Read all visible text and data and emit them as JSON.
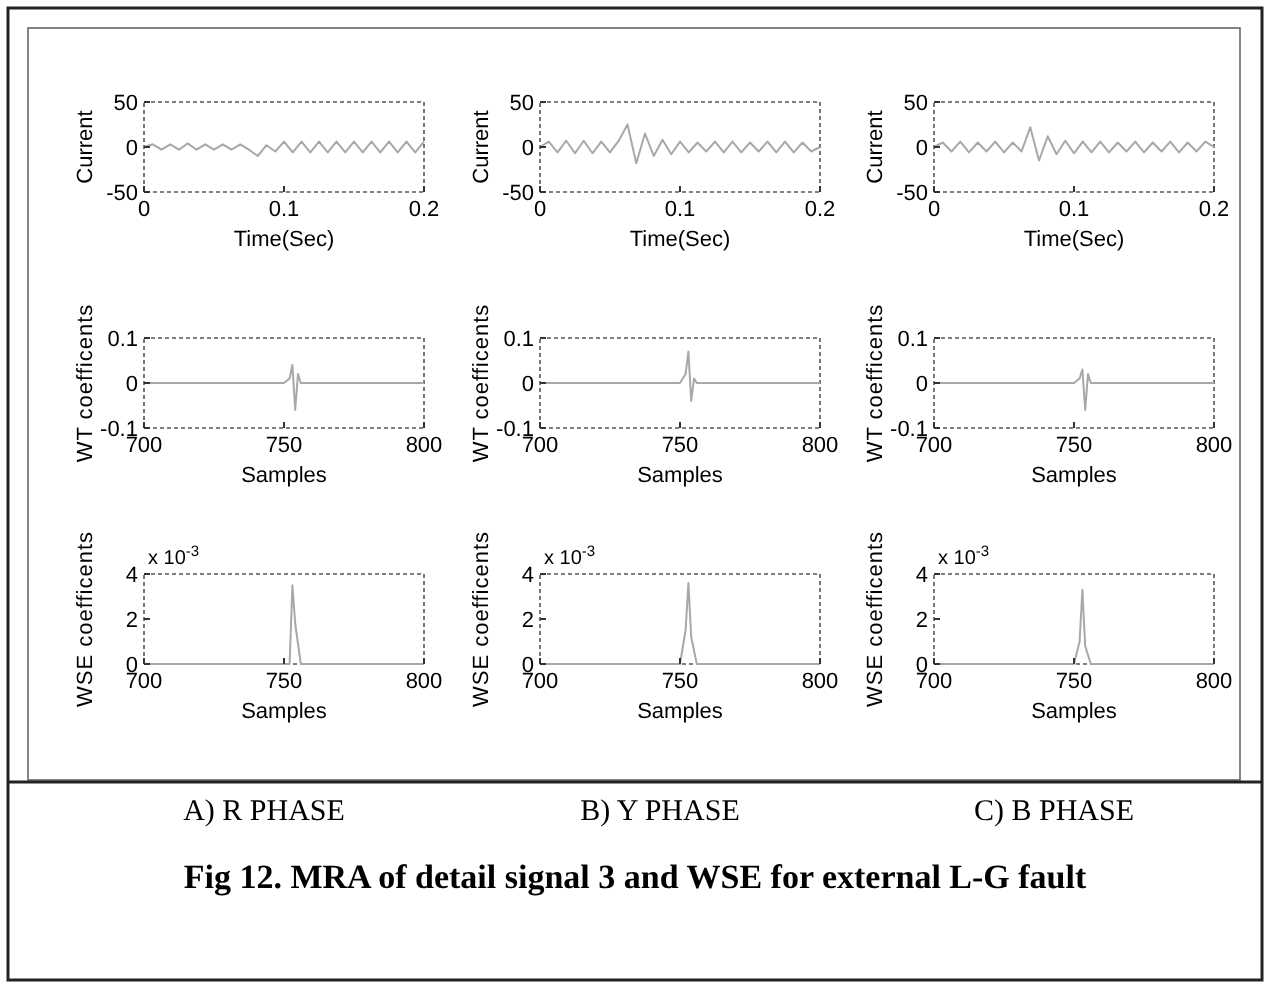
{
  "chart_data": [
    {
      "type": "line",
      "xlabel": "Time(Sec)",
      "ylabel": "Current",
      "xlim": [
        0,
        0.2
      ],
      "ylim": [
        -50,
        50
      ],
      "xticks": [
        0,
        0.1,
        0.2
      ],
      "yticks": [
        -50,
        0,
        50
      ],
      "grid": false,
      "x": [
        0,
        0.00625,
        0.0125,
        0.01875,
        0.025,
        0.03125,
        0.0375,
        0.04375,
        0.05,
        0.05625,
        0.0625,
        0.06875,
        0.075,
        0.08125,
        0.0875,
        0.09375,
        0.1,
        0.10625,
        0.1125,
        0.11875,
        0.125,
        0.13125,
        0.1375,
        0.14375,
        0.15,
        0.15625,
        0.1625,
        0.16875,
        0.175,
        0.18125,
        0.1875,
        0.19375,
        0.2
      ],
      "series": [
        {
          "color": "#a8a8a8",
          "values": [
            0,
            3,
            -3,
            3,
            -3,
            4,
            -3,
            3,
            -3,
            3,
            -3,
            3,
            -3,
            -10,
            2,
            -5,
            6,
            -6,
            6,
            -6,
            6,
            -6,
            6,
            -6,
            6,
            -6,
            6,
            -6,
            6,
            -6,
            6,
            -6,
            6
          ]
        }
      ]
    },
    {
      "type": "line",
      "xlabel": "Time(Sec)",
      "ylabel": "Current",
      "xlim": [
        0,
        0.2
      ],
      "ylim": [
        -50,
        50
      ],
      "xticks": [
        0,
        0.1,
        0.2
      ],
      "yticks": [
        -50,
        0,
        50
      ],
      "grid": false,
      "x": [
        0,
        0.00625,
        0.0125,
        0.01875,
        0.025,
        0.03125,
        0.0375,
        0.04375,
        0.05,
        0.05625,
        0.0625,
        0.06875,
        0.075,
        0.08125,
        0.0875,
        0.09375,
        0.1,
        0.10625,
        0.1125,
        0.11875,
        0.125,
        0.13125,
        0.1375,
        0.14375,
        0.15,
        0.15625,
        0.1625,
        0.16875,
        0.175,
        0.18125,
        0.1875,
        0.19375,
        0.2
      ],
      "series": [
        {
          "color": "#a8a8a8",
          "values": [
            0,
            6,
            -6,
            7,
            -7,
            7,
            -7,
            6,
            -6,
            7,
            25,
            -18,
            15,
            -10,
            8,
            -8,
            6,
            -6,
            5,
            -5,
            6,
            -6,
            6,
            -6,
            5,
            -5,
            6,
            -6,
            6,
            -6,
            5,
            -5,
            0
          ]
        }
      ]
    },
    {
      "type": "line",
      "xlabel": "Time(Sec)",
      "ylabel": "Current",
      "xlim": [
        0,
        0.2
      ],
      "ylim": [
        -50,
        50
      ],
      "xticks": [
        0,
        0.1,
        0.2
      ],
      "yticks": [
        -50,
        0,
        50
      ],
      "grid": false,
      "x": [
        0,
        0.00625,
        0.0125,
        0.01875,
        0.025,
        0.03125,
        0.0375,
        0.04375,
        0.05,
        0.05625,
        0.0625,
        0.06875,
        0.075,
        0.08125,
        0.0875,
        0.09375,
        0.1,
        0.10625,
        0.1125,
        0.11875,
        0.125,
        0.13125,
        0.1375,
        0.14375,
        0.15,
        0.15625,
        0.1625,
        0.16875,
        0.175,
        0.18125,
        0.1875,
        0.19375,
        0.2
      ],
      "series": [
        {
          "color": "#a8a8a8",
          "values": [
            0,
            5,
            -5,
            6,
            -6,
            5,
            -5,
            6,
            -6,
            5,
            -5,
            22,
            -15,
            12,
            -8,
            7,
            -7,
            6,
            -6,
            6,
            -6,
            5,
            -5,
            6,
            -6,
            5,
            -5,
            6,
            -6,
            5,
            -5,
            6,
            0
          ]
        }
      ]
    },
    {
      "type": "line",
      "xlabel": "Samples",
      "ylabel": "WT coefficents",
      "xlim": [
        700,
        800
      ],
      "ylim": [
        -0.1,
        0.1
      ],
      "xticks": [
        700,
        750,
        800
      ],
      "yticks": [
        -0.1,
        0,
        0.1
      ],
      "grid": false,
      "x": [
        700,
        740,
        750,
        752,
        753,
        754,
        755,
        756,
        760,
        800
      ],
      "series": [
        {
          "color": "#a8a8a8",
          "values": [
            0,
            0,
            0,
            0.01,
            0.04,
            -0.06,
            0.02,
            0,
            0,
            0
          ]
        }
      ]
    },
    {
      "type": "line",
      "xlabel": "Samples",
      "ylabel": "WT coefficents",
      "xlim": [
        700,
        800
      ],
      "ylim": [
        -0.1,
        0.1
      ],
      "xticks": [
        700,
        750,
        800
      ],
      "yticks": [
        -0.1,
        0,
        0.1
      ],
      "grid": false,
      "x": [
        700,
        740,
        750,
        752,
        753,
        754,
        755,
        756,
        760,
        800
      ],
      "series": [
        {
          "color": "#a8a8a8",
          "values": [
            0,
            0,
            0,
            0.02,
            0.07,
            -0.04,
            0.01,
            0,
            0,
            0
          ]
        }
      ]
    },
    {
      "type": "line",
      "xlabel": "Samples",
      "ylabel": "WT coefficents",
      "xlim": [
        700,
        800
      ],
      "ylim": [
        -0.1,
        0.1
      ],
      "xticks": [
        700,
        750,
        800
      ],
      "yticks": [
        -0.1,
        0,
        0.1
      ],
      "grid": false,
      "x": [
        700,
        740,
        750,
        752,
        753,
        754,
        755,
        756,
        760,
        800
      ],
      "series": [
        {
          "color": "#a8a8a8",
          "values": [
            0,
            0,
            0,
            0.01,
            0.03,
            -0.06,
            0.02,
            0,
            0,
            0
          ]
        }
      ]
    },
    {
      "type": "line",
      "xlabel": "Samples",
      "ylabel": "WSE coefficents",
      "xlim": [
        700,
        800
      ],
      "ylim": [
        0,
        4
      ],
      "xticks": [
        700,
        750,
        800
      ],
      "yticks": [
        0,
        2,
        4
      ],
      "grid": false,
      "x": [
        700,
        750,
        752,
        753,
        754,
        756,
        800
      ],
      "series": [
        {
          "color": "#a8a8a8",
          "values": [
            0,
            0,
            0,
            3.5,
            1.8,
            0,
            0
          ]
        }
      ],
      "annotations": [
        "x 10$^{-3}$",
        "A) R PHASE"
      ]
    },
    {
      "type": "line",
      "xlabel": "Samples",
      "ylabel": "WSE coefficents",
      "xlim": [
        700,
        800
      ],
      "ylim": [
        0,
        4
      ],
      "xticks": [
        700,
        750,
        800
      ],
      "yticks": [
        0,
        2,
        4
      ],
      "grid": false,
      "x": [
        700,
        750,
        752,
        753,
        754,
        756,
        800
      ],
      "series": [
        {
          "color": "#a8a8a8",
          "values": [
            0,
            0,
            1.5,
            3.6,
            1.2,
            0,
            0
          ]
        }
      ],
      "annotations": [
        "x 10$^{-3}$",
        "B) Y PHASE",
        "Fig 12. MRA of detail signal 3 and WSE for external L-G fault"
      ]
    },
    {
      "type": "line",
      "xlabel": "Samples",
      "ylabel": "WSE coefficents",
      "xlim": [
        700,
        800
      ],
      "ylim": [
        0,
        4
      ],
      "xticks": [
        700,
        750,
        800
      ],
      "yticks": [
        0,
        2,
        4
      ],
      "grid": false,
      "x": [
        700,
        750,
        752,
        753,
        754,
        756,
        800
      ],
      "series": [
        {
          "color": "#a8a8a8",
          "values": [
            0,
            0,
            1,
            3.3,
            0.8,
            0,
            0
          ]
        }
      ],
      "annotations": [
        "x 10$^{-3}$",
        "C) B PHASE"
      ]
    }
  ]
}
